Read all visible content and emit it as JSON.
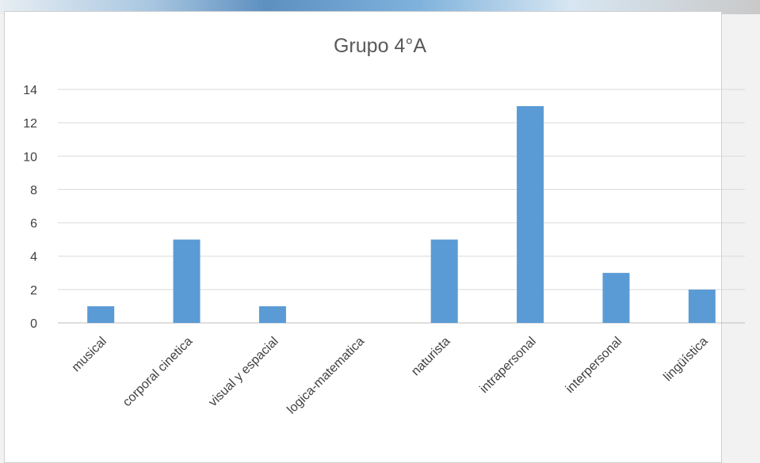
{
  "chart_data": {
    "type": "bar",
    "title": "Grupo 4°A",
    "xlabel": "",
    "ylabel": "",
    "categories": [
      "musical",
      "corporal cinetica",
      "visual y espacial",
      "logica-matematica",
      "naturista",
      "intrapersonal",
      "interpersonal",
      "lingüística"
    ],
    "values": [
      1,
      5,
      1,
      0,
      5,
      13,
      3,
      2
    ],
    "ylim": [
      0,
      14
    ],
    "yticks": [
      0,
      2,
      4,
      6,
      8,
      10,
      12,
      14
    ],
    "grid": true,
    "legend": "none",
    "bar_color": "#5b9bd5"
  }
}
